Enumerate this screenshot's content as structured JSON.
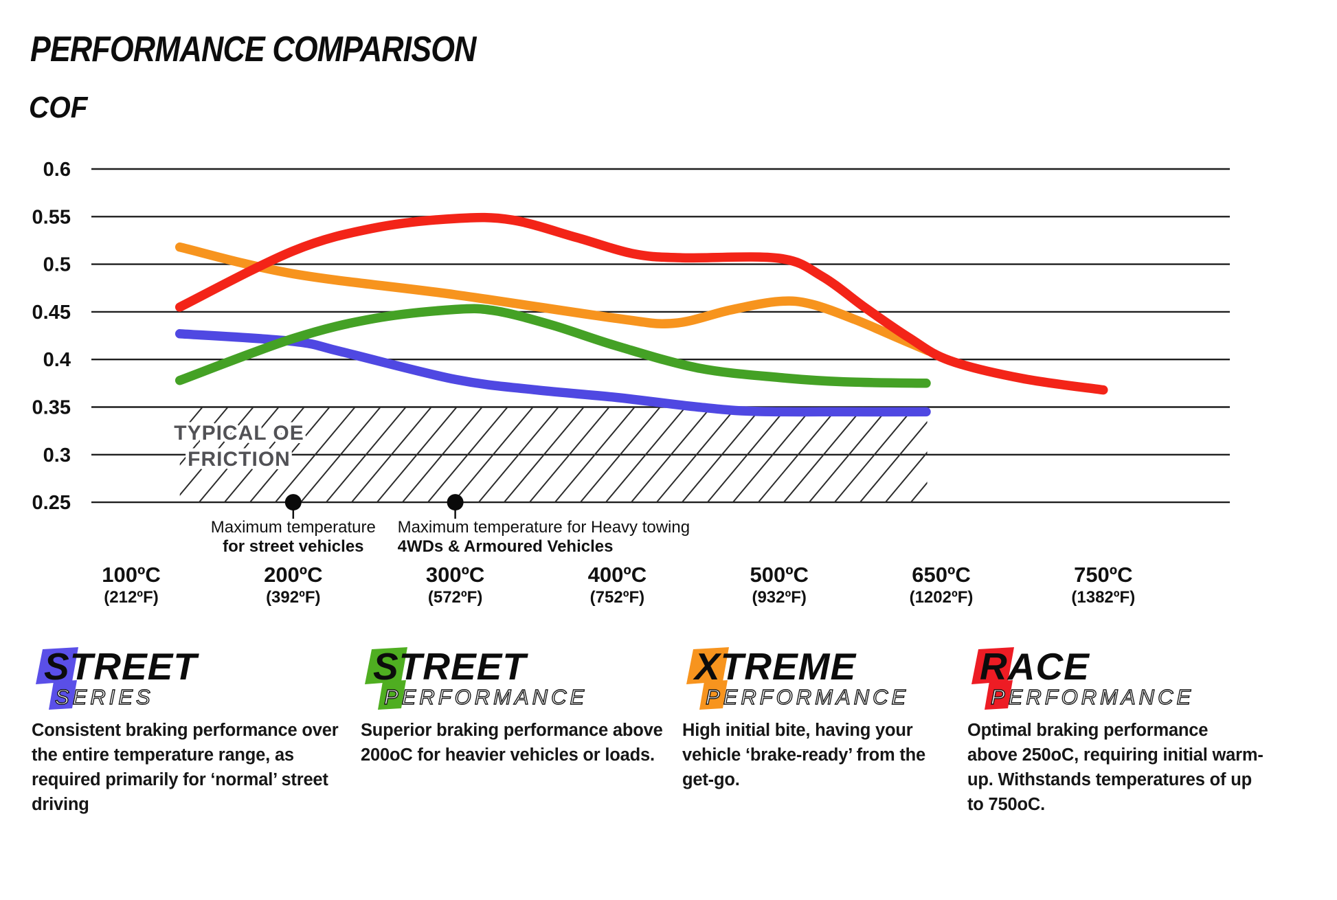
{
  "header": {
    "title": "PERFORMANCE COMPARISON",
    "y_axis_label": "COF"
  },
  "chart_data": {
    "type": "line",
    "title": "PERFORMANCE COMPARISON",
    "ylabel": "COF",
    "ylim": [
      0.25,
      0.6
    ],
    "grid": "horizontal",
    "legend_position": "bottom",
    "y_ticks": [
      "0.6",
      "0.55",
      "0.5",
      "0.45",
      "0.4",
      "0.35",
      "0.3",
      "0.25"
    ],
    "x_ticks": [
      {
        "temp": 100,
        "label_c": "100ºC",
        "label_f": "(212ºF)"
      },
      {
        "temp": 200,
        "label_c": "200ºC",
        "label_f": "(392ºF)"
      },
      {
        "temp": 300,
        "label_c": "300ºC",
        "label_f": "(572ºF)"
      },
      {
        "temp": 400,
        "label_c": "400ºC",
        "label_f": "(752ºF)"
      },
      {
        "temp": 500,
        "label_c": "500ºC",
        "label_f": "(932ºF)"
      },
      {
        "temp": 650,
        "label_c": "650ºC",
        "label_f": "(1202ºF)"
      },
      {
        "temp": 750,
        "label_c": "750ºC",
        "label_f": "(1382ºF)"
      }
    ],
    "oe_band": {
      "label_line1": "TYPICAL OE",
      "label_line2": "FRICTION",
      "cof_min": 0.25,
      "cof_max": 0.35,
      "temp_min": 130,
      "temp_max": 637
    },
    "annotations": [
      {
        "temp": 200,
        "cof": 0.25,
        "line1": "Maximum temperature",
        "line2": "for street vehicles",
        "align": "center"
      },
      {
        "temp": 300,
        "cof": 0.25,
        "line1": "Maximum temperature for Heavy towing",
        "line2": "4WDs & Armoured Vehicles",
        "align": "left"
      }
    ],
    "series": [
      {
        "name": "Street Series",
        "slug": "street-series",
        "color": "#4f48e2",
        "points": [
          [
            130,
            0.427
          ],
          [
            200,
            0.419
          ],
          [
            230,
            0.408
          ],
          [
            300,
            0.379
          ],
          [
            350,
            0.368
          ],
          [
            400,
            0.36
          ],
          [
            450,
            0.35
          ],
          [
            485,
            0.3455
          ],
          [
            560,
            0.345
          ],
          [
            636,
            0.345
          ]
        ]
      },
      {
        "name": "Street Performance",
        "slug": "street-performance",
        "color": "#44a125",
        "points": [
          [
            130,
            0.378
          ],
          [
            200,
            0.422
          ],
          [
            250,
            0.443
          ],
          [
            300,
            0.4525
          ],
          [
            325,
            0.451
          ],
          [
            360,
            0.436
          ],
          [
            400,
            0.414
          ],
          [
            450,
            0.391
          ],
          [
            500,
            0.381
          ],
          [
            560,
            0.3765
          ],
          [
            636,
            0.375
          ]
        ]
      },
      {
        "name": "Xtreme Performance",
        "slug": "xtreme-performance",
        "color": "#f7941e",
        "points": [
          [
            130,
            0.518
          ],
          [
            200,
            0.49
          ],
          [
            300,
            0.468
          ],
          [
            400,
            0.443
          ],
          [
            435,
            0.438
          ],
          [
            470,
            0.452
          ],
          [
            500,
            0.461
          ],
          [
            530,
            0.458
          ],
          [
            570,
            0.442
          ],
          [
            605,
            0.425
          ],
          [
            638,
            0.409
          ]
        ]
      },
      {
        "name": "Race Performance",
        "slug": "race-performance",
        "color": "#f32418",
        "points": [
          [
            130,
            0.455
          ],
          [
            200,
            0.514
          ],
          [
            250,
            0.538
          ],
          [
            300,
            0.548
          ],
          [
            335,
            0.5465
          ],
          [
            375,
            0.528
          ],
          [
            410,
            0.511
          ],
          [
            440,
            0.5068
          ],
          [
            500,
            0.5062
          ],
          [
            540,
            0.487
          ],
          [
            580,
            0.454
          ],
          [
            620,
            0.423
          ],
          [
            655,
            0.399
          ],
          [
            700,
            0.38
          ],
          [
            750,
            0.368
          ]
        ]
      }
    ]
  },
  "legends": [
    {
      "word": "STREET",
      "sub": "SERIES",
      "color": "#5a4fe8",
      "desc": "Consistent braking performance over\nthe entire temperature range, as\nrequired primarily for ‘normal’ street\ndriving"
    },
    {
      "word": "STREET",
      "sub": "PERFORMANCE",
      "color": "#4fae21",
      "desc": "Superior braking performance above\n200oC for heavier vehicles or loads."
    },
    {
      "word": "XTREME",
      "sub": "PERFORMANCE",
      "color": "#f7941e",
      "desc": "High initial bite, having your\nvehicle ‘brake-ready’ from the\nget-go."
    },
    {
      "word": "RACE",
      "sub": "PERFORMANCE",
      "color": "#ed1c24",
      "desc": "Optimal braking performance\nabove 250oC, requiring initial warm-\nup. Withstands temperatures of up\nto 750oC."
    }
  ]
}
